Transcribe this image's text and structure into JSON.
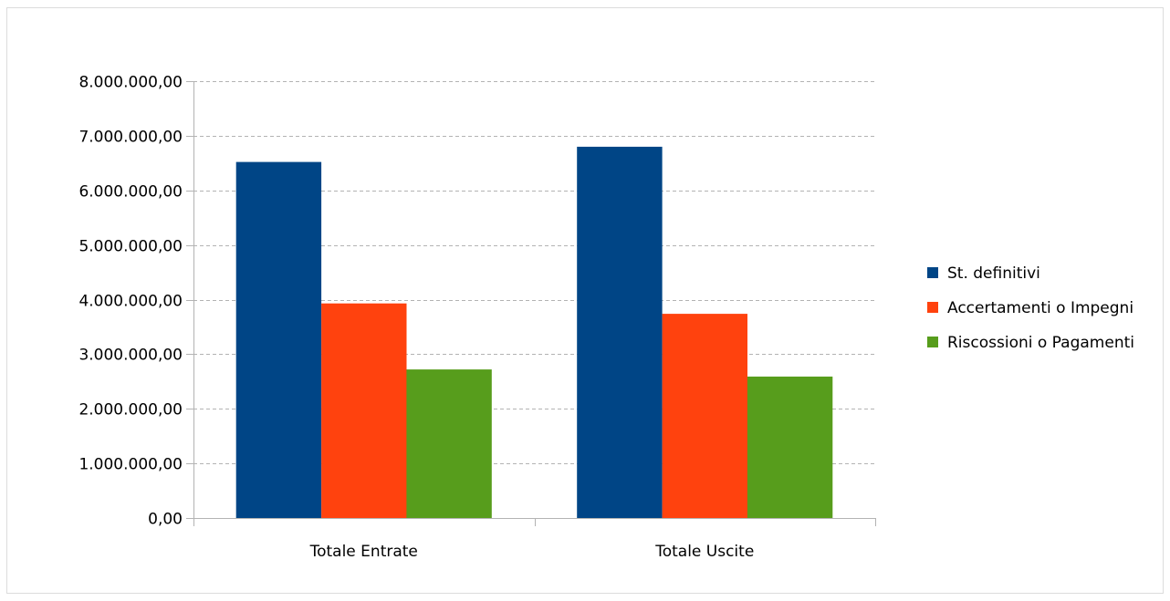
{
  "chart_data": {
    "type": "bar",
    "title": "",
    "xlabel": "",
    "ylabel": "",
    "categories": [
      "Totale Entrate",
      "Totale Uscite"
    ],
    "series": [
      {
        "name": "St. definitivi",
        "color": "#004586",
        "values": [
          6520000,
          6800000
        ]
      },
      {
        "name": "Accertamenti o Impegni",
        "color": "#ff420e",
        "values": [
          3930000,
          3740000
        ]
      },
      {
        "name": "Riscossioni o Pagamenti",
        "color": "#579d1c",
        "values": [
          2720000,
          2590000
        ]
      }
    ],
    "ylim": [
      0,
      8000000
    ],
    "y_ticks": [
      0,
      1000000,
      2000000,
      3000000,
      4000000,
      5000000,
      6000000,
      7000000,
      8000000
    ],
    "y_tick_labels": [
      "0,00",
      "1.000.000,00",
      "2.000.000,00",
      "3.000.000,00",
      "4.000.000,00",
      "5.000.000,00",
      "6.000.000,00",
      "7.000.000,00",
      "8.000.000,00"
    ],
    "grid": true,
    "grid_style": "dashed",
    "legend_position": "right"
  }
}
